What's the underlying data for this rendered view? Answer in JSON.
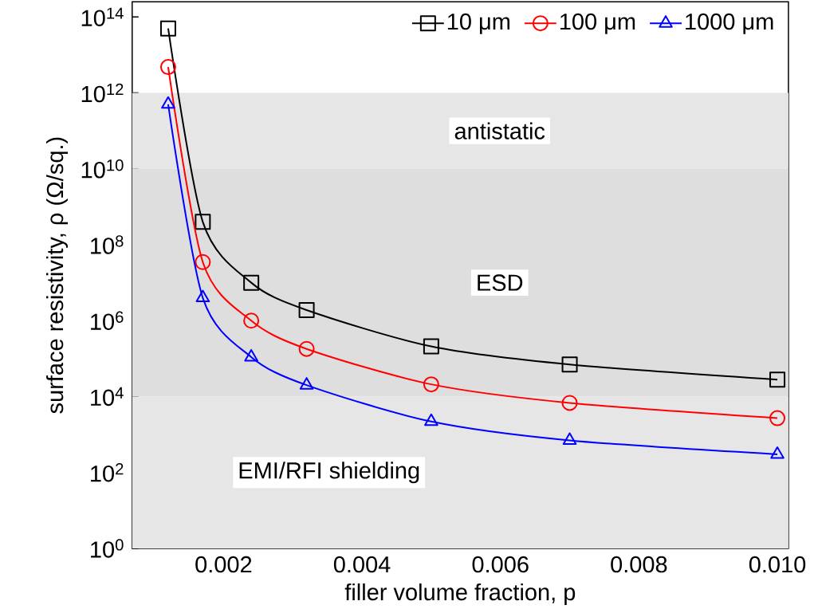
{
  "chart_data": {
    "type": "line",
    "xlabel": "filler volume fraction, p",
    "ylabel": "surface resistivity, ρ (Ω/sq.)",
    "x": [
      0.0012,
      0.0017,
      0.0024,
      0.0032,
      0.005,
      0.007,
      0.01
    ],
    "series": [
      {
        "name": "10 μm",
        "color": "#000000",
        "marker": "square",
        "values": [
          50000000000000.0,
          400000000.0,
          10000000.0,
          1900000.0,
          210000.0,
          70000.0,
          28000.0
        ]
      },
      {
        "name": "100 μm",
        "color": "#ff0000",
        "marker": "circle",
        "values": [
          4800000000000.0,
          35000000.0,
          1000000.0,
          180000.0,
          21000.0,
          6800.0,
          2700.0
        ]
      },
      {
        "name": "1000 μm",
        "color": "#0000ff",
        "marker": "triangle",
        "values": [
          500000000000.0,
          4000000.0,
          110000.0,
          20000.0,
          2200.0,
          700.0,
          300.0
        ]
      }
    ],
    "log": "y",
    "xlim": [
      0.00068,
      0.01016
    ],
    "ylim": [
      1,
      250000000000000.0
    ],
    "xticks": [
      {
        "value": 0.002,
        "label": "0.002"
      },
      {
        "value": 0.004,
        "label": "0.004"
      },
      {
        "value": 0.006,
        "label": "0.006"
      },
      {
        "value": 0.008,
        "label": "0.008"
      },
      {
        "value": 0.01,
        "label": "0.010"
      }
    ],
    "yticks": [
      {
        "value": 1,
        "label": "10$^{0}$"
      },
      {
        "value": 100,
        "label": "10$^{2}$"
      },
      {
        "value": 10000,
        "label": "10$^{4}$"
      },
      {
        "value": 1000000,
        "label": "10$^{6}$"
      },
      {
        "value": 100000000,
        "label": "10$^{8}$"
      },
      {
        "value": 10000000000,
        "label": "10$^{10}$"
      },
      {
        "value": 1000000000000,
        "label": "10$^{12}$"
      },
      {
        "value": 100000000000000,
        "label": "10$^{14}$"
      }
    ],
    "bands": [
      {
        "axis": "y",
        "from": 10000000000,
        "to": 1000000000000,
        "label": "antistatic",
        "color": "#e6e6e6"
      },
      {
        "axis": "y",
        "from": 10000,
        "to": 10000000000,
        "label": "ESD",
        "color": "#dedede"
      },
      {
        "axis": "y",
        "from": 1,
        "to": 10000,
        "label": "EMI/RFI shielding",
        "color": "#e6e6e6"
      }
    ],
    "legend": "top right",
    "line_style": "solid",
    "grid": false
  }
}
